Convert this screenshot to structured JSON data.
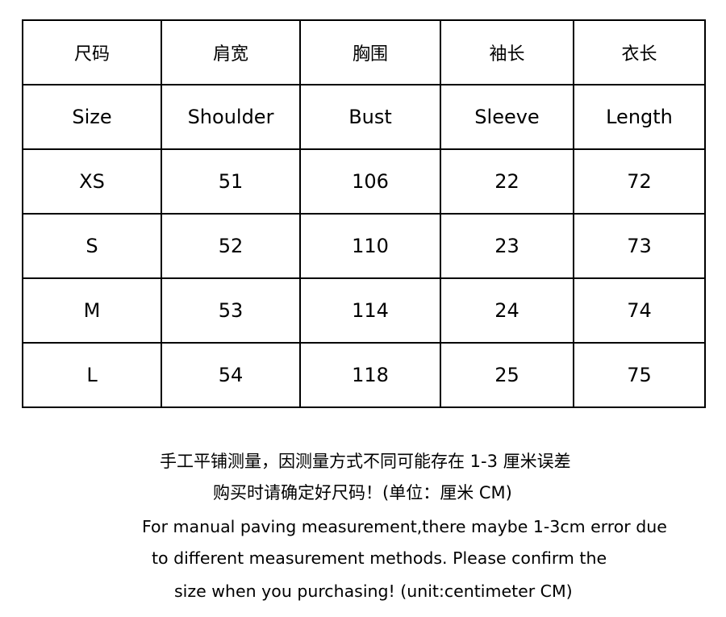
{
  "size_chart": {
    "headers_cn": [
      "尺码",
      "肩宽",
      "胸围",
      "袖长",
      "衣长"
    ],
    "headers_en": [
      "Size",
      "Shoulder",
      "Bust",
      "Sleeve",
      "Length"
    ],
    "rows": [
      [
        "XS",
        "51",
        "106",
        "22",
        "72"
      ],
      [
        "S",
        "52",
        "110",
        "23",
        "73"
      ],
      [
        "M",
        "53",
        "114",
        "24",
        "74"
      ],
      [
        "L",
        "54",
        "118",
        "25",
        "75"
      ]
    ]
  },
  "notes": [
    "手工平铺测量，因测量方式不同可能存在 1-3 厘米误差",
    "购买时请确定好尺码！(单位：厘米 CM)",
    "For manual paving measurement,there maybe 1-3cm error due",
    "to different measurement methods. Please confirm the",
    "size when you purchasing! (unit:centimeter CM)"
  ]
}
